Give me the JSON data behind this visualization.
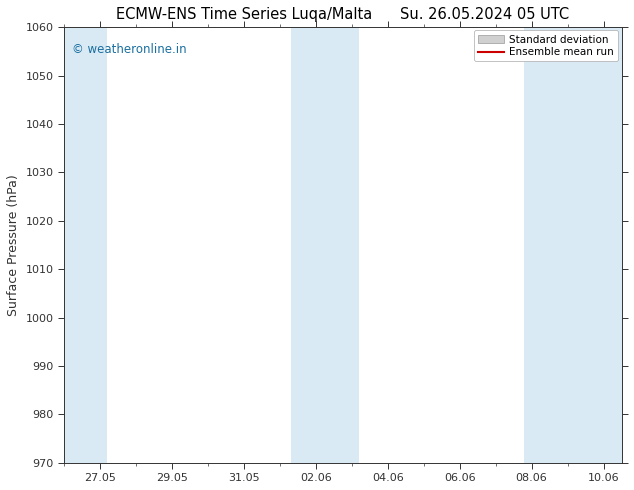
{
  "title_left": "ECMW-ENS Time Series Luqa/Malta",
  "title_right": "Su. 26.05.2024 05 UTC",
  "ylabel": "Surface Pressure (hPa)",
  "ylim": [
    970,
    1060
  ],
  "yticks": [
    970,
    980,
    990,
    1000,
    1010,
    1020,
    1030,
    1040,
    1050,
    1060
  ],
  "xtick_labels": [
    "27.05",
    "29.05",
    "31.05",
    "02.06",
    "04.06",
    "06.06",
    "08.06",
    "10.06"
  ],
  "xtick_positions": [
    1,
    3,
    5,
    7,
    9,
    11,
    13,
    15
  ],
  "xlim": [
    0,
    15.5
  ],
  "shaded_band_color": "#daeaf5",
  "shaded_bands": [
    {
      "start": 0.0,
      "end": 1.2
    },
    {
      "start": 6.3,
      "end": 8.2
    },
    {
      "start": 12.8,
      "end": 15.5
    }
  ],
  "mean_line_color": "#cc0000",
  "watermark_text": "© weatheronline.in",
  "watermark_color": "#1a6fa0",
  "legend_std_color": "#d0d0d0",
  "legend_mean_color": "#cc0000",
  "background_color": "#ffffff",
  "plot_bg_color": "#ffffff",
  "spine_color": "#333333",
  "tick_color": "#333333",
  "title_fontsize": 10.5,
  "label_fontsize": 9,
  "tick_fontsize": 8
}
